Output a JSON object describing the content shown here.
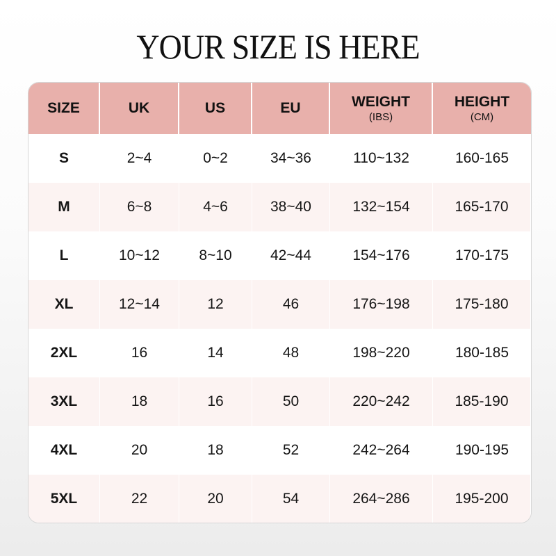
{
  "title": "YOUR SIZE IS HERE",
  "colors": {
    "header": "#e8b0ab",
    "alt_row": "#fcf3f2"
  },
  "headers": [
    {
      "label": "SIZE",
      "sub": ""
    },
    {
      "label": "UK",
      "sub": ""
    },
    {
      "label": "US",
      "sub": ""
    },
    {
      "label": "EU",
      "sub": ""
    },
    {
      "label": "WEIGHT",
      "sub": "(IBS)"
    },
    {
      "label": "HEIGHT",
      "sub": "(CM)"
    }
  ],
  "rows": [
    [
      "S",
      "2~4",
      "0~2",
      "34~36",
      "110~132",
      "160-165"
    ],
    [
      "M",
      "6~8",
      "4~6",
      "38~40",
      "132~154",
      "165-170"
    ],
    [
      "L",
      "10~12",
      "8~10",
      "42~44",
      "154~176",
      "170-175"
    ],
    [
      "XL",
      "12~14",
      "12",
      "46",
      "176~198",
      "175-180"
    ],
    [
      "2XL",
      "16",
      "14",
      "48",
      "198~220",
      "180-185"
    ],
    [
      "3XL",
      "18",
      "16",
      "50",
      "220~242",
      "185-190"
    ],
    [
      "4XL",
      "20",
      "18",
      "52",
      "242~264",
      "190-195"
    ],
    [
      "5XL",
      "22",
      "20",
      "54",
      "264~286",
      "195-200"
    ]
  ]
}
